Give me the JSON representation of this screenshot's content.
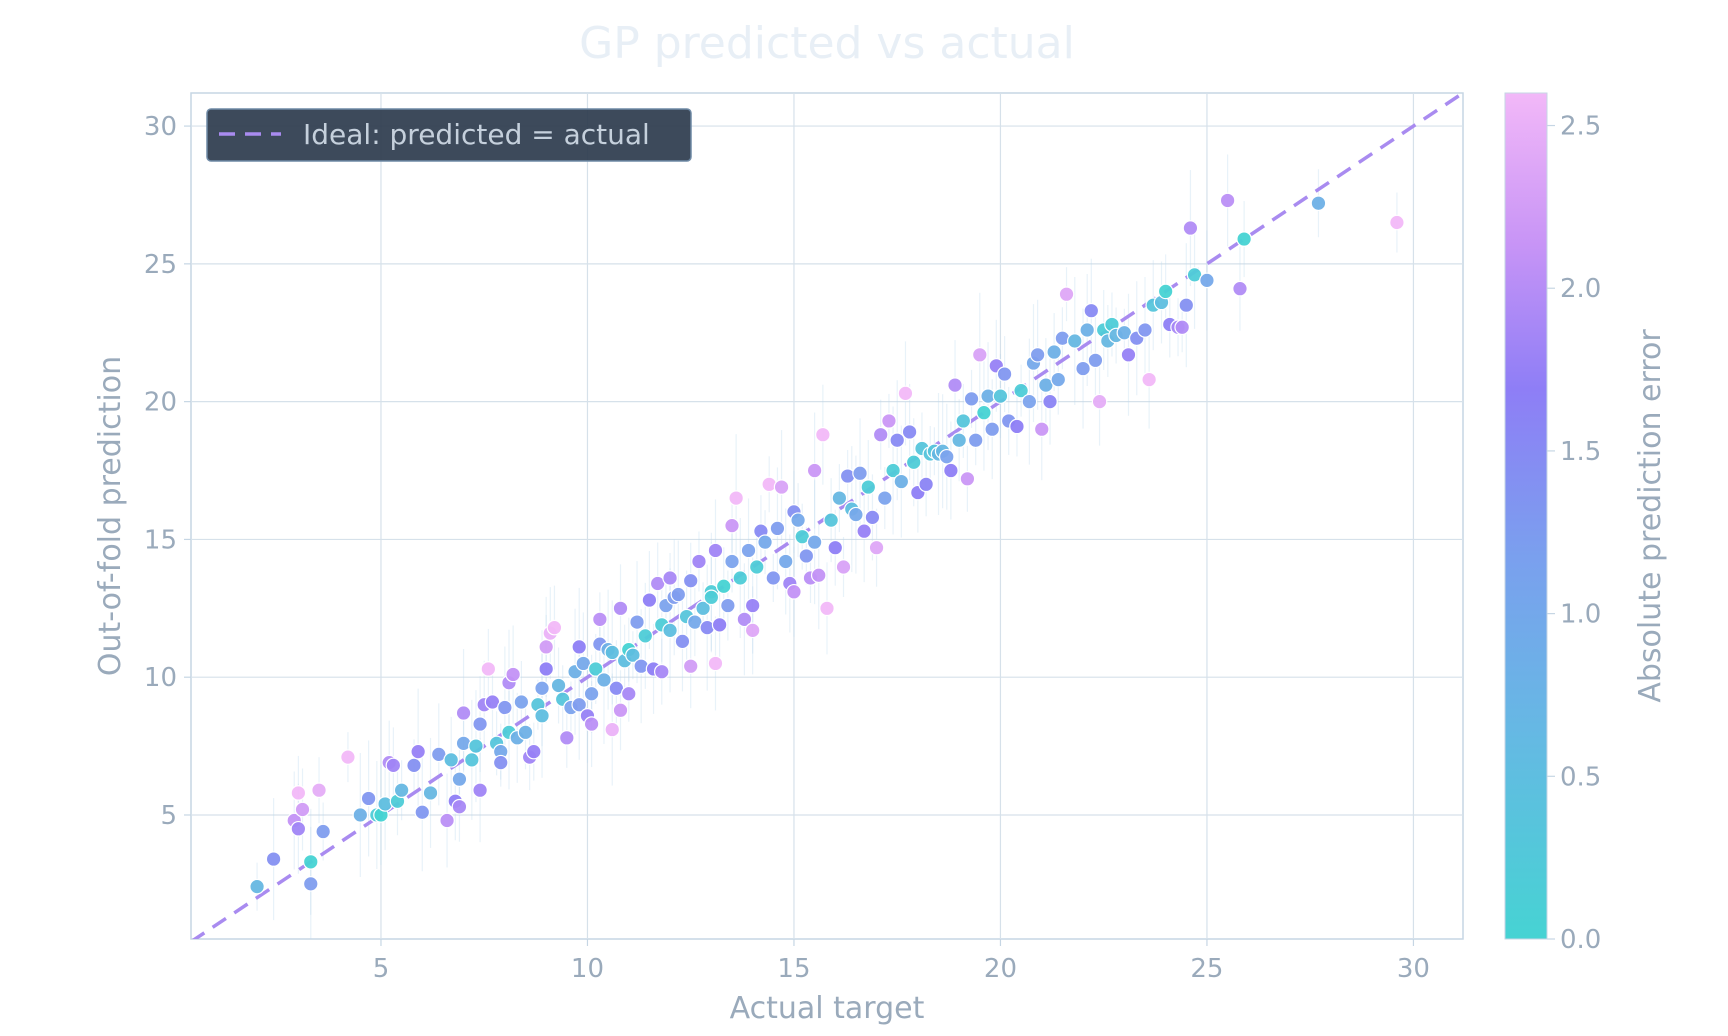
{
  "chart_data": {
    "type": "scatter",
    "title": "GP predicted vs actual",
    "xlabel": "Actual target",
    "ylabel": "Out-of-fold prediction",
    "xlim": [
      0.4,
      31.2
    ],
    "ylim": [
      0.5,
      31.2
    ],
    "xticks": [
      5,
      10,
      15,
      20,
      25,
      30
    ],
    "yticks": [
      5,
      10,
      15,
      20,
      25,
      30
    ],
    "grid": true,
    "legend": {
      "position": "top-left",
      "entries": [
        "Ideal: predicted = actual"
      ]
    },
    "reference_line": {
      "label": "Ideal: predicted = actual",
      "style": "dashed",
      "color": "#a98bf0"
    },
    "colorbar": {
      "label": "Absolute prediction error",
      "range": [
        0.0,
        2.6
      ],
      "ticks": [
        "0.0",
        "0.5",
        "1.0",
        "1.5",
        "2.0",
        "2.5"
      ],
      "colors": [
        "#46d3d3",
        "#7aa6ec",
        "#8e7ef6",
        "#c794f6",
        "#f2b8f8"
      ]
    },
    "points": [
      [
        2.0,
        2.4
      ],
      [
        2.4,
        3.4
      ],
      [
        3.3,
        2.5
      ],
      [
        3.3,
        3.3
      ],
      [
        2.9,
        4.8
      ],
      [
        3.0,
        4.5
      ],
      [
        3.1,
        5.2
      ],
      [
        3.0,
        5.8
      ],
      [
        3.5,
        5.9
      ],
      [
        3.6,
        4.4
      ],
      [
        4.2,
        7.1
      ],
      [
        4.5,
        5.0
      ],
      [
        4.7,
        5.6
      ],
      [
        4.9,
        5.0
      ],
      [
        5.0,
        5.0
      ],
      [
        5.1,
        5.4
      ],
      [
        5.2,
        6.9
      ],
      [
        5.3,
        6.8
      ],
      [
        5.4,
        5.5
      ],
      [
        5.5,
        5.9
      ],
      [
        5.8,
        6.8
      ],
      [
        5.9,
        7.3
      ],
      [
        6.0,
        5.1
      ],
      [
        6.2,
        5.8
      ],
      [
        6.4,
        7.2
      ],
      [
        6.6,
        4.8
      ],
      [
        6.7,
        7.0
      ],
      [
        6.8,
        5.5
      ],
      [
        6.9,
        5.3
      ],
      [
        6.9,
        6.3
      ],
      [
        7.0,
        7.6
      ],
      [
        7.0,
        8.7
      ],
      [
        7.2,
        7.0
      ],
      [
        7.3,
        7.5
      ],
      [
        7.4,
        5.9
      ],
      [
        7.4,
        8.3
      ],
      [
        7.5,
        9.0
      ],
      [
        7.6,
        10.3
      ],
      [
        7.7,
        9.1
      ],
      [
        7.8,
        7.6
      ],
      [
        7.9,
        7.3
      ],
      [
        7.9,
        6.9
      ],
      [
        8.0,
        8.9
      ],
      [
        8.1,
        8.0
      ],
      [
        8.1,
        9.8
      ],
      [
        8.2,
        10.1
      ],
      [
        8.3,
        7.8
      ],
      [
        8.4,
        9.1
      ],
      [
        8.5,
        8.0
      ],
      [
        8.6,
        7.1
      ],
      [
        8.7,
        7.3
      ],
      [
        8.8,
        9.0
      ],
      [
        8.9,
        8.6
      ],
      [
        8.9,
        9.6
      ],
      [
        9.0,
        10.3
      ],
      [
        9.0,
        11.1
      ],
      [
        9.1,
        11.6
      ],
      [
        9.2,
        11.8
      ],
      [
        9.3,
        9.7
      ],
      [
        9.4,
        9.2
      ],
      [
        9.5,
        7.8
      ],
      [
        9.6,
        8.9
      ],
      [
        9.7,
        10.2
      ],
      [
        9.8,
        11.1
      ],
      [
        9.8,
        9.0
      ],
      [
        9.9,
        10.5
      ],
      [
        10.0,
        8.6
      ],
      [
        10.1,
        8.3
      ],
      [
        10.1,
        9.4
      ],
      [
        10.2,
        10.3
      ],
      [
        10.3,
        11.2
      ],
      [
        10.3,
        12.1
      ],
      [
        10.4,
        9.9
      ],
      [
        10.5,
        11.0
      ],
      [
        10.6,
        8.1
      ],
      [
        10.6,
        10.9
      ],
      [
        10.7,
        9.6
      ],
      [
        10.8,
        12.5
      ],
      [
        10.8,
        8.8
      ],
      [
        10.9,
        10.6
      ],
      [
        11.0,
        11.0
      ],
      [
        11.0,
        9.4
      ],
      [
        11.1,
        10.8
      ],
      [
        11.2,
        12.0
      ],
      [
        11.3,
        10.4
      ],
      [
        11.4,
        11.5
      ],
      [
        11.5,
        12.8
      ],
      [
        11.6,
        10.3
      ],
      [
        11.7,
        13.4
      ],
      [
        11.8,
        11.9
      ],
      [
        11.8,
        10.2
      ],
      [
        11.9,
        12.6
      ],
      [
        12.0,
        13.6
      ],
      [
        12.0,
        11.7
      ],
      [
        12.1,
        12.9
      ],
      [
        12.2,
        13.0
      ],
      [
        12.3,
        11.3
      ],
      [
        12.4,
        12.2
      ],
      [
        12.5,
        10.4
      ],
      [
        12.5,
        13.5
      ],
      [
        12.6,
        12.0
      ],
      [
        12.7,
        14.2
      ],
      [
        12.8,
        12.5
      ],
      [
        12.9,
        11.8
      ],
      [
        13.0,
        13.1
      ],
      [
        13.0,
        12.9
      ],
      [
        13.1,
        14.6
      ],
      [
        13.1,
        10.5
      ],
      [
        13.2,
        11.9
      ],
      [
        13.3,
        13.3
      ],
      [
        13.4,
        12.6
      ],
      [
        13.5,
        14.2
      ],
      [
        13.5,
        15.5
      ],
      [
        13.6,
        16.5
      ],
      [
        13.7,
        13.6
      ],
      [
        13.8,
        12.1
      ],
      [
        13.9,
        14.6
      ],
      [
        14.0,
        12.6
      ],
      [
        14.0,
        11.7
      ],
      [
        14.1,
        14.0
      ],
      [
        14.2,
        15.3
      ],
      [
        14.3,
        14.9
      ],
      [
        14.4,
        17.0
      ],
      [
        14.5,
        13.6
      ],
      [
        14.6,
        15.4
      ],
      [
        14.7,
        16.9
      ],
      [
        14.8,
        14.2
      ],
      [
        14.9,
        13.4
      ],
      [
        15.0,
        13.1
      ],
      [
        15.0,
        16.0
      ],
      [
        15.1,
        15.7
      ],
      [
        15.2,
        15.1
      ],
      [
        15.3,
        14.4
      ],
      [
        15.4,
        13.6
      ],
      [
        15.5,
        14.9
      ],
      [
        15.5,
        17.5
      ],
      [
        15.6,
        13.7
      ],
      [
        15.7,
        18.8
      ],
      [
        15.8,
        12.5
      ],
      [
        15.9,
        15.7
      ],
      [
        16.0,
        14.7
      ],
      [
        16.1,
        16.5
      ],
      [
        16.2,
        14.0
      ],
      [
        16.3,
        17.3
      ],
      [
        16.4,
        16.1
      ],
      [
        16.5,
        15.9
      ],
      [
        16.6,
        17.4
      ],
      [
        16.7,
        15.3
      ],
      [
        16.8,
        16.9
      ],
      [
        16.9,
        15.8
      ],
      [
        17.0,
        14.7
      ],
      [
        17.1,
        18.8
      ],
      [
        17.2,
        16.5
      ],
      [
        17.3,
        19.3
      ],
      [
        17.4,
        17.5
      ],
      [
        17.5,
        18.6
      ],
      [
        17.6,
        17.1
      ],
      [
        17.7,
        20.3
      ],
      [
        17.8,
        18.9
      ],
      [
        17.9,
        17.8
      ],
      [
        18.0,
        16.7
      ],
      [
        18.1,
        18.3
      ],
      [
        18.2,
        17.0
      ],
      [
        18.3,
        18.1
      ],
      [
        18.4,
        18.2
      ],
      [
        18.5,
        18.1
      ],
      [
        18.6,
        18.2
      ],
      [
        18.7,
        18.0
      ],
      [
        18.8,
        17.5
      ],
      [
        18.9,
        20.6
      ],
      [
        19.0,
        18.6
      ],
      [
        19.1,
        19.3
      ],
      [
        19.2,
        17.2
      ],
      [
        19.3,
        20.1
      ],
      [
        19.4,
        18.6
      ],
      [
        19.5,
        21.7
      ],
      [
        19.6,
        19.6
      ],
      [
        19.7,
        20.2
      ],
      [
        19.8,
        19.0
      ],
      [
        19.9,
        21.3
      ],
      [
        20.0,
        20.2
      ],
      [
        20.1,
        21.0
      ],
      [
        20.2,
        19.3
      ],
      [
        20.4,
        19.1
      ],
      [
        20.5,
        20.4
      ],
      [
        20.7,
        20.0
      ],
      [
        20.8,
        21.4
      ],
      [
        20.9,
        21.7
      ],
      [
        21.0,
        19.0
      ],
      [
        21.1,
        20.6
      ],
      [
        21.2,
        20.0
      ],
      [
        21.3,
        21.8
      ],
      [
        21.4,
        20.8
      ],
      [
        21.5,
        22.3
      ],
      [
        21.6,
        23.9
      ],
      [
        21.8,
        22.2
      ],
      [
        22.0,
        21.2
      ],
      [
        22.1,
        22.6
      ],
      [
        22.2,
        23.3
      ],
      [
        22.3,
        21.5
      ],
      [
        22.4,
        20.0
      ],
      [
        22.5,
        22.6
      ],
      [
        22.6,
        22.2
      ],
      [
        22.7,
        22.8
      ],
      [
        22.8,
        22.4
      ],
      [
        23.0,
        22.5
      ],
      [
        23.1,
        21.7
      ],
      [
        23.3,
        22.3
      ],
      [
        23.5,
        22.6
      ],
      [
        23.6,
        20.8
      ],
      [
        23.7,
        23.5
      ],
      [
        23.9,
        23.6
      ],
      [
        24.0,
        24.0
      ],
      [
        24.1,
        22.8
      ],
      [
        24.3,
        22.7
      ],
      [
        24.4,
        22.7
      ],
      [
        24.5,
        23.5
      ],
      [
        24.6,
        26.3
      ],
      [
        24.7,
        24.6
      ],
      [
        25.0,
        24.4
      ],
      [
        25.5,
        27.3
      ],
      [
        25.8,
        24.1
      ],
      [
        25.9,
        25.9
      ],
      [
        27.7,
        27.2
      ],
      [
        29.6,
        26.5
      ]
    ]
  }
}
